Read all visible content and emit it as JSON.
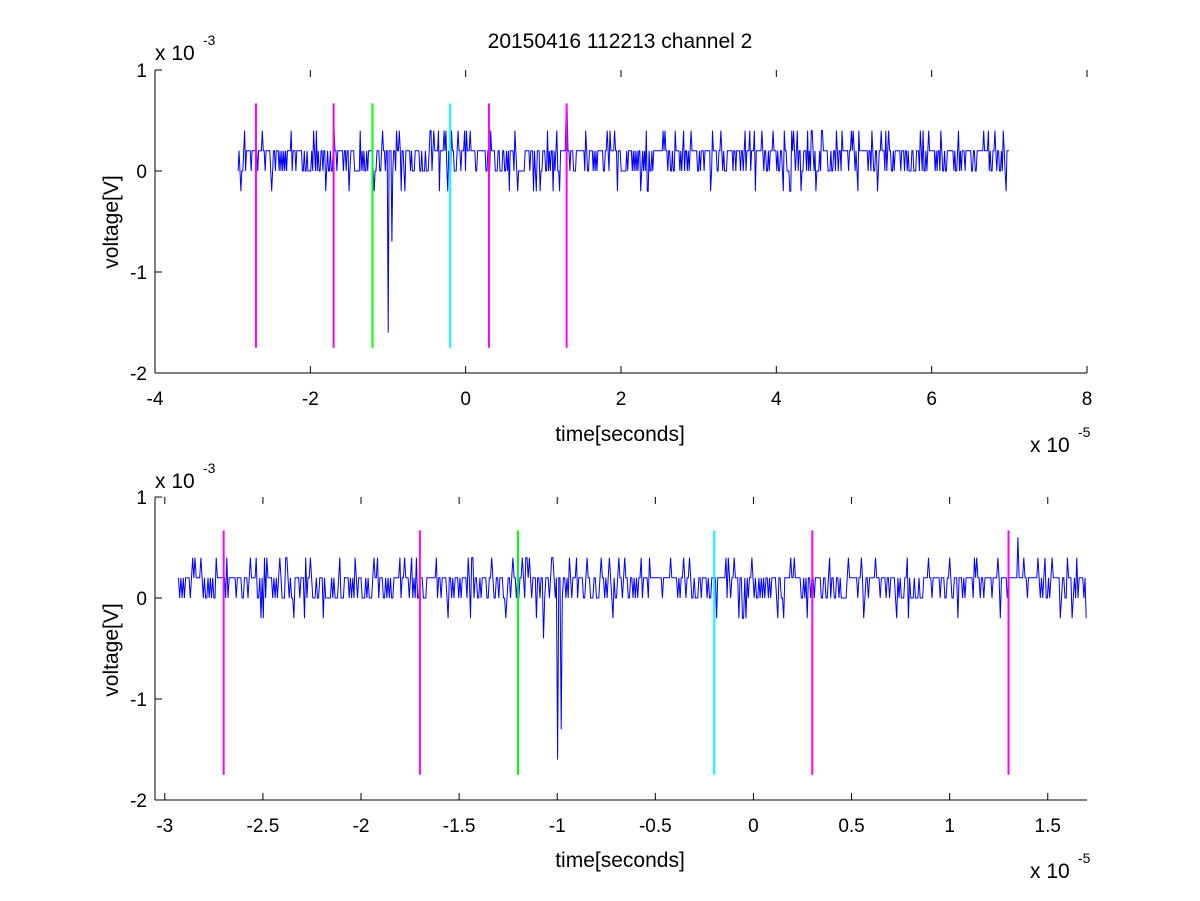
{
  "chart_data": [
    {
      "type": "line",
      "title": "20150416 112213 channel 2",
      "xlabel": "time[seconds]",
      "ylabel": "voltage[V]",
      "xlim": [
        -4e-05,
        8e-05
      ],
      "ylim": [
        -0.002,
        0.001
      ],
      "x_tick_labels": [
        "-4",
        "-2",
        "0",
        "2",
        "4",
        "6",
        "8"
      ],
      "y_tick_labels": [
        "1",
        "0",
        "-1",
        "-2"
      ],
      "x_multiplier": "x 10",
      "x_multiplier_exp": "-5",
      "y_multiplier": "x 10",
      "y_multiplier_exp": "-3",
      "grid": false,
      "trace": {
        "color": "#0000ff",
        "x_start": -2.93e-05,
        "x_end": 7e-05,
        "baseline_levels": [
          0,
          0.0002,
          0.0004,
          -0.0002,
          -0.0004
        ],
        "features": [
          {
            "x": -1e-05,
            "y": -0.0016
          },
          {
            "x": -9.5e-06,
            "y": -0.0007
          },
          {
            "x": 1.3e-05,
            "y": 0.0006
          }
        ]
      },
      "markers": [
        {
          "x": -2.7e-05,
          "color": "#ff00ff",
          "y_range": [
            -0.00175,
            0.00067
          ]
        },
        {
          "x": -1.7e-05,
          "color": "#ff00ff",
          "y_range": [
            -0.00175,
            0.00067
          ]
        },
        {
          "x": -1.2e-05,
          "color": "#00ff00",
          "y_range": [
            -0.00175,
            0.00067
          ]
        },
        {
          "x": -2e-06,
          "color": "#00ffff",
          "y_range": [
            -0.00175,
            0.00067
          ]
        },
        {
          "x": 3e-06,
          "color": "#ff00ff",
          "y_range": [
            -0.00175,
            0.00067
          ]
        },
        {
          "x": 1.3e-05,
          "color": "#ff00ff",
          "y_range": [
            -0.00175,
            0.00067
          ]
        }
      ]
    },
    {
      "type": "line",
      "title": "",
      "xlabel": "time[seconds]",
      "ylabel": "voltage[V]",
      "xlim": [
        -3.05e-05,
        1.7e-05
      ],
      "ylim": [
        -0.002,
        0.001
      ],
      "x_ticks": [
        -3e-05,
        -2.5e-05,
        -2e-05,
        -1.5e-05,
        -1e-05,
        -5e-06,
        0,
        5e-06,
        1e-05,
        1.5e-05
      ],
      "x_tick_labels": [
        "-3",
        "-2.5",
        "-2",
        "-1.5",
        "-1",
        "-0.5",
        "0",
        "0.5",
        "1",
        "1.5"
      ],
      "y_tick_labels": [
        "1",
        "0",
        "-1",
        "-2"
      ],
      "x_multiplier": "x 10",
      "x_multiplier_exp": "-5",
      "y_multiplier": "x 10",
      "y_multiplier_exp": "-3",
      "grid": false,
      "trace": {
        "color": "#0000ff",
        "x_start": -2.93e-05,
        "x_end": 1.7e-05,
        "baseline_levels": [
          0,
          0.0002,
          0.0004,
          -0.0002
        ],
        "features": [
          {
            "x": -1e-05,
            "y": -0.0016
          },
          {
            "x": -9.8e-06,
            "y": -0.0013
          },
          {
            "x": -1.07e-05,
            "y": -0.0004
          },
          {
            "x": 1.35e-05,
            "y": 0.0006
          }
        ]
      },
      "markers": [
        {
          "x": -2.7e-05,
          "color": "#ff00ff",
          "y_range": [
            -0.00175,
            0.00067
          ]
        },
        {
          "x": -1.7e-05,
          "color": "#ff00ff",
          "y_range": [
            -0.00175,
            0.00067
          ]
        },
        {
          "x": -1.2e-05,
          "color": "#00ff00",
          "y_range": [
            -0.00175,
            0.00067
          ]
        },
        {
          "x": -2e-06,
          "color": "#00ffff",
          "y_range": [
            -0.00175,
            0.00067
          ]
        },
        {
          "x": 3e-06,
          "color": "#ff00ff",
          "y_range": [
            -0.00175,
            0.00067
          ]
        },
        {
          "x": 1.3e-05,
          "color": "#ff00ff",
          "y_range": [
            -0.00175,
            0.00067
          ]
        }
      ]
    }
  ]
}
